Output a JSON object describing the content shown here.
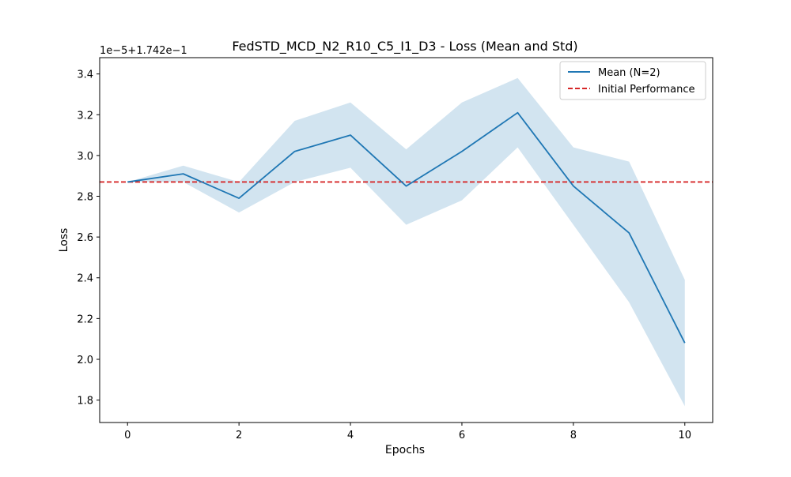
{
  "chart_data": {
    "type": "line",
    "title": "FedSTD_MCD_N2_R10_C5_I1_D3 - Loss (Mean and Std)",
    "xlabel": "Epochs",
    "ylabel": "Loss",
    "offset_label": "1e−5+1.742e−1",
    "xlim": [
      -0.5,
      10.5
    ],
    "ylim": [
      1.69,
      3.48
    ],
    "x_ticks": [
      0,
      2,
      4,
      6,
      8,
      10
    ],
    "y_ticks": [
      1.8,
      2.0,
      2.2,
      2.4,
      2.6,
      2.8,
      3.0,
      3.2,
      3.4
    ],
    "x": [
      0,
      1,
      2,
      3,
      4,
      5,
      6,
      7,
      8,
      9,
      10
    ],
    "series": [
      {
        "name": "Mean (N=2)",
        "style": "solid",
        "color": "#1f77b4",
        "values": [
          2.87,
          2.91,
          2.79,
          3.02,
          3.1,
          2.85,
          3.02,
          3.21,
          2.85,
          2.62,
          2.08
        ]
      }
    ],
    "band": {
      "color": "#1f77b4",
      "lower": [
        2.87,
        2.87,
        2.72,
        2.87,
        2.94,
        2.66,
        2.78,
        3.04,
        2.66,
        2.28,
        1.77
      ],
      "upper": [
        2.87,
        2.95,
        2.87,
        3.17,
        3.26,
        3.03,
        3.26,
        3.38,
        3.04,
        2.97,
        2.39
      ]
    },
    "reference_line": {
      "name": "Initial Performance",
      "value": 2.87,
      "style": "dashed",
      "color": "#d62728"
    },
    "legend_position": "top-right",
    "grid": false
  }
}
